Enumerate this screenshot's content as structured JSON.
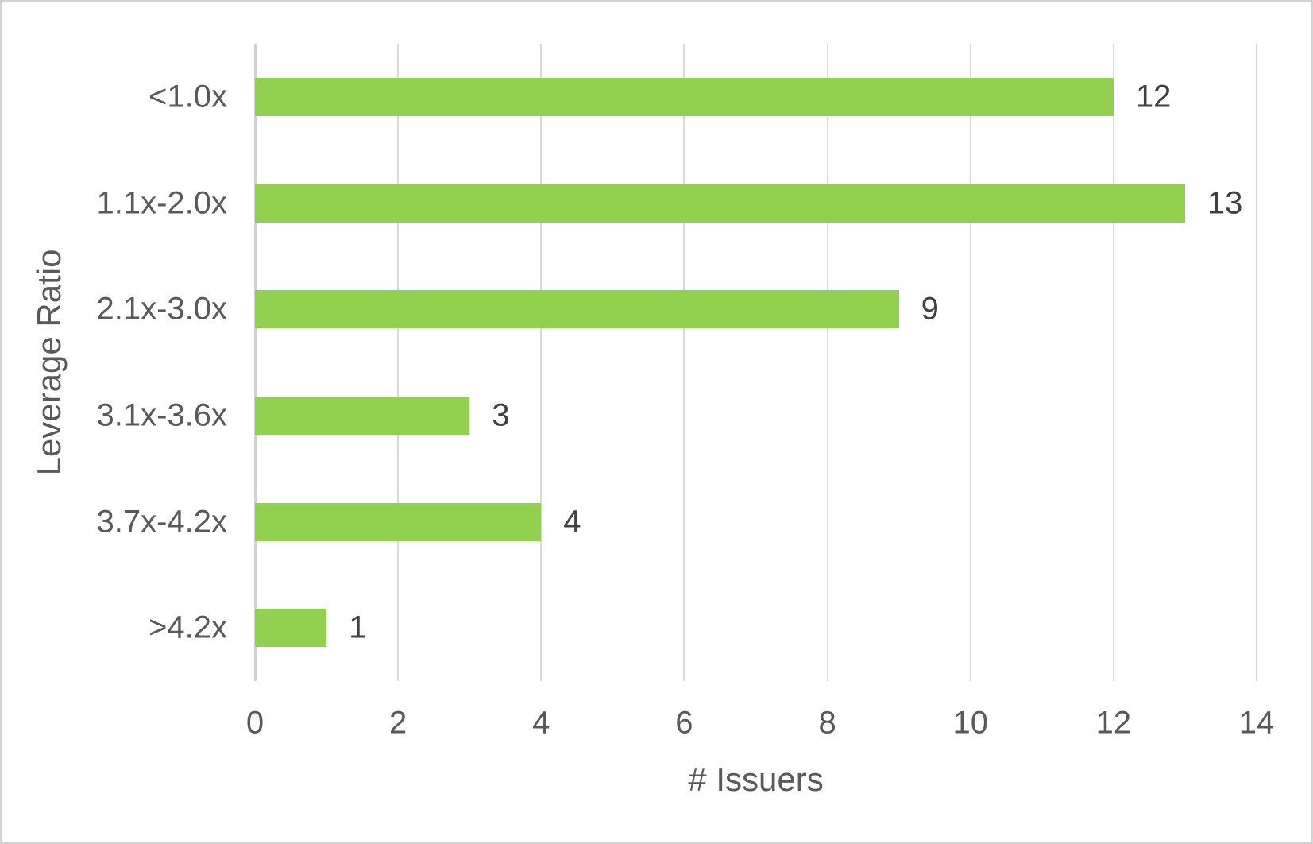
{
  "chart_data": {
    "type": "bar",
    "orientation": "horizontal",
    "title": "",
    "xlabel": "# Issuers",
    "ylabel": "Leverage Ratio",
    "categories": [
      "<1.0x",
      "1.1x-2.0x",
      "2.1x-3.0x",
      "3.1x-3.6x",
      "3.7x-4.2x",
      ">4.2x"
    ],
    "values": [
      12,
      13,
      9,
      3,
      4,
      1
    ],
    "data_labels": [
      "12",
      "13",
      "9",
      "3",
      "4",
      "1"
    ],
    "xlim": [
      0,
      14
    ],
    "xticks": [
      0,
      2,
      4,
      6,
      8,
      10,
      12,
      14
    ],
    "grid": "vertical-on",
    "legend": "none",
    "bar_color": "#92D050",
    "gridline_color": "#D9D9D9",
    "axis_text_color": "#595959",
    "data_label_color": "#404040",
    "border_color": "#D4D4D4",
    "background_color": "#FFFFFF"
  }
}
